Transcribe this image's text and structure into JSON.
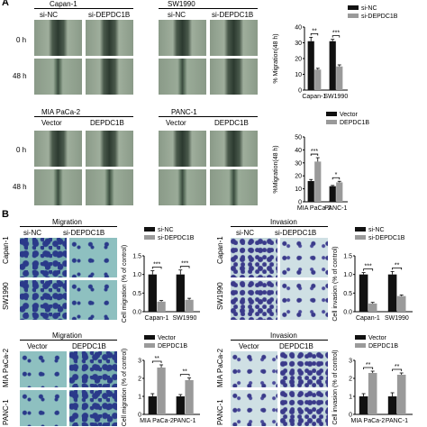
{
  "panelA": {
    "letter": "A",
    "row1": {
      "col1": "Capan-1",
      "col1_left": "si-NC",
      "col1_right": "si-DEPDC1B",
      "col2": "SW1990",
      "col2_left": "si-NC",
      "col2_right": "si-DEPDC1B",
      "t0": "0 h",
      "t48": "48 h"
    },
    "row2": {
      "col1": "MIA PaCa-2",
      "col1_left": "Vector",
      "col1_right": "DEPDC1B",
      "col2": "PANC-1",
      "col2_left": "Vector",
      "col2_right": "DEPDC1B",
      "t0": "0 h",
      "t48": "48 h"
    }
  },
  "panelB": {
    "letter": "B",
    "top_left_title": "Migration",
    "top_right_title": "Invasion",
    "bottom_left_title": "Migration",
    "bottom_right_title": "Invasion",
    "top_cols": [
      "si-NC",
      "si-DEPDC1B"
    ],
    "bottom_cols": [
      "Vector",
      "DEPDC1B"
    ],
    "top_rows": [
      "Capan-1",
      "SW1990"
    ],
    "bottom_rows": [
      "MIA PaCa-2",
      "PANC-1"
    ]
  },
  "colors": {
    "black_bar": "#111111",
    "grey_bar": "#9a9a9a"
  },
  "chart_data": [
    {
      "type": "bar",
      "categories": [
        "Capan-1",
        "SW1990"
      ],
      "series": [
        {
          "name": "si-NC",
          "values": [
            31,
            31
          ]
        },
        {
          "name": "si-DEPDC1B",
          "values": [
            13,
            15
          ]
        }
      ],
      "errors": [
        [
          2.5,
          1.2
        ],
        [
          0.8,
          1
        ]
      ],
      "ylabel": "% Migration(48 h)",
      "ylim": [
        0,
        40
      ],
      "yticks": [
        "0",
        "10",
        "20",
        "30",
        "40"
      ],
      "significance": [
        "**",
        "***"
      ],
      "legend": "top-right"
    },
    {
      "type": "bar",
      "categories": [
        "MIA PaCa-2",
        "PANC-1"
      ],
      "series": [
        {
          "name": "Vector",
          "values": [
            16,
            12
          ]
        },
        {
          "name": "DEPDC1B",
          "values": [
            31,
            15
          ]
        }
      ],
      "errors": [
        [
          1.2,
          0.6
        ],
        [
          3,
          0.8
        ]
      ],
      "ylabel": "%Migration(48 h)",
      "ylim": [
        0,
        50
      ],
      "yticks": [
        "0",
        "10",
        "20",
        "30",
        "40",
        "50"
      ],
      "significance": [
        "***",
        "*"
      ],
      "legend": "top-right"
    },
    {
      "type": "bar",
      "categories": [
        "Capan-1",
        "SW1990"
      ],
      "series": [
        {
          "name": "si-NC",
          "values": [
            1.0,
            1.0
          ]
        },
        {
          "name": "si-DEPDC1B",
          "values": [
            0.27,
            0.32
          ]
        }
      ],
      "errors": [
        [
          0.1,
          0.12
        ],
        [
          0.03,
          0.04
        ]
      ],
      "ylabel": "Cell migration (% of control)",
      "ylim": [
        0,
        1.5
      ],
      "yticks": [
        "0.0",
        "0.5",
        "1.0",
        "1.5"
      ],
      "significance": [
        "***",
        "***"
      ],
      "legend": "top-right"
    },
    {
      "type": "bar",
      "categories": [
        "Capan-1",
        "SW1990"
      ],
      "series": [
        {
          "name": "si-NC",
          "values": [
            1.0,
            1.0
          ]
        },
        {
          "name": "si-DEPDC1B",
          "values": [
            0.22,
            0.42
          ]
        }
      ],
      "errors": [
        [
          0.05,
          0.08
        ],
        [
          0.03,
          0.03
        ]
      ],
      "ylabel": "Cell invasion (% of control)",
      "ylim": [
        0,
        1.5
      ],
      "yticks": [
        "0.0",
        "0.5",
        "1.0",
        "1.5"
      ],
      "significance": [
        "***",
        "**"
      ],
      "legend": "top-right"
    },
    {
      "type": "bar",
      "categories": [
        "MIA PaCa-2",
        "PANC-1"
      ],
      "series": [
        {
          "name": "Vector",
          "values": [
            1.0,
            1.0
          ]
        },
        {
          "name": "DEPDC1B",
          "values": [
            2.6,
            1.9
          ]
        }
      ],
      "errors": [
        [
          0.15,
          0.1
        ],
        [
          0.15,
          0.12
        ]
      ],
      "ylabel": "Cell migration (% of control)",
      "ylim": [
        0,
        3
      ],
      "yticks": [
        "0",
        "1",
        "2",
        "3"
      ],
      "significance": [
        "**",
        "**"
      ],
      "legend": "top-right"
    },
    {
      "type": "bar",
      "categories": [
        "MIA PaCa-2",
        "PANC-1"
      ],
      "series": [
        {
          "name": "Vector",
          "values": [
            1.0,
            1.0
          ]
        },
        {
          "name": "DEPDC1B",
          "values": [
            2.3,
            2.2
          ]
        }
      ],
      "errors": [
        [
          0.15,
          0.2
        ],
        [
          0.1,
          0.1
        ]
      ],
      "ylabel": "Cell invasion (% of control)",
      "ylim": [
        0,
        3
      ],
      "yticks": [
        "0",
        "1",
        "2",
        "3"
      ],
      "significance": [
        "**",
        "**"
      ],
      "legend": "top-right"
    }
  ]
}
